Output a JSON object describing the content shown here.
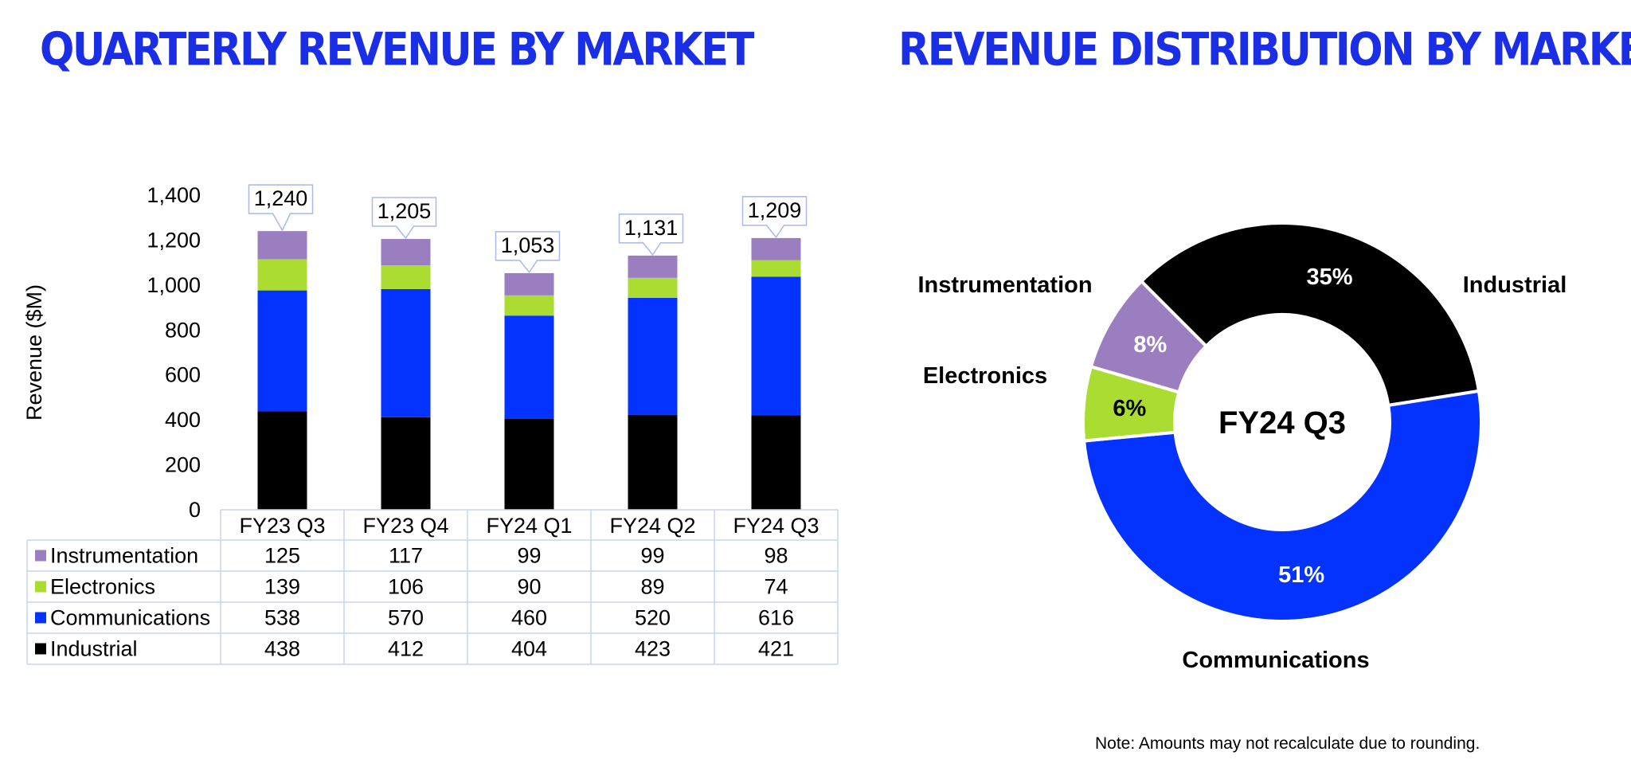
{
  "titles": {
    "left": "QUARTERLY REVENUE BY MARKET",
    "right": "REVENUE DISTRIBUTION BY MARKET"
  },
  "note": "Note: Amounts may not recalculate due to rounding.",
  "colors": {
    "title": "#1a2ee6",
    "Industrial": "#000000",
    "Communications": "#0432ff",
    "Electronics": "#aadc32",
    "Instrumentation": "#9a7ec0",
    "table_border": "#c9d3ee"
  },
  "chart_data": [
    {
      "type": "bar",
      "stacked": true,
      "ylabel": "Revenue ($M)",
      "ylim": [
        0,
        1400
      ],
      "yticks": [
        "0",
        "200",
        "400",
        "600",
        "800",
        "1,000",
        "1,200",
        "1,400"
      ],
      "categories": [
        "FY23 Q3",
        "FY23 Q4",
        "FY24 Q1",
        "FY24 Q2",
        "FY24 Q3"
      ],
      "totals": [
        "1,240",
        "1,205",
        "1,053",
        "1,131",
        "1,209"
      ],
      "series": [
        {
          "name": "Industrial",
          "values": [
            438,
            412,
            404,
            423,
            421
          ]
        },
        {
          "name": "Communications",
          "values": [
            538,
            570,
            460,
            520,
            616
          ]
        },
        {
          "name": "Electronics",
          "values": [
            139,
            106,
            90,
            89,
            74
          ]
        },
        {
          "name": "Instrumentation",
          "values": [
            125,
            117,
            99,
            99,
            98
          ]
        }
      ],
      "table_row_order": [
        "Instrumentation",
        "Electronics",
        "Communications",
        "Industrial"
      ],
      "grid": false
    },
    {
      "type": "pie",
      "donut": true,
      "center_label": "FY24 Q3",
      "slices": [
        {
          "name": "Industrial",
          "value": 35,
          "label": "35%"
        },
        {
          "name": "Communications",
          "value": 51,
          "label": "51%"
        },
        {
          "name": "Electronics",
          "value": 6,
          "label": "6%"
        },
        {
          "name": "Instrumentation",
          "value": 8,
          "label": "8%"
        }
      ]
    }
  ]
}
